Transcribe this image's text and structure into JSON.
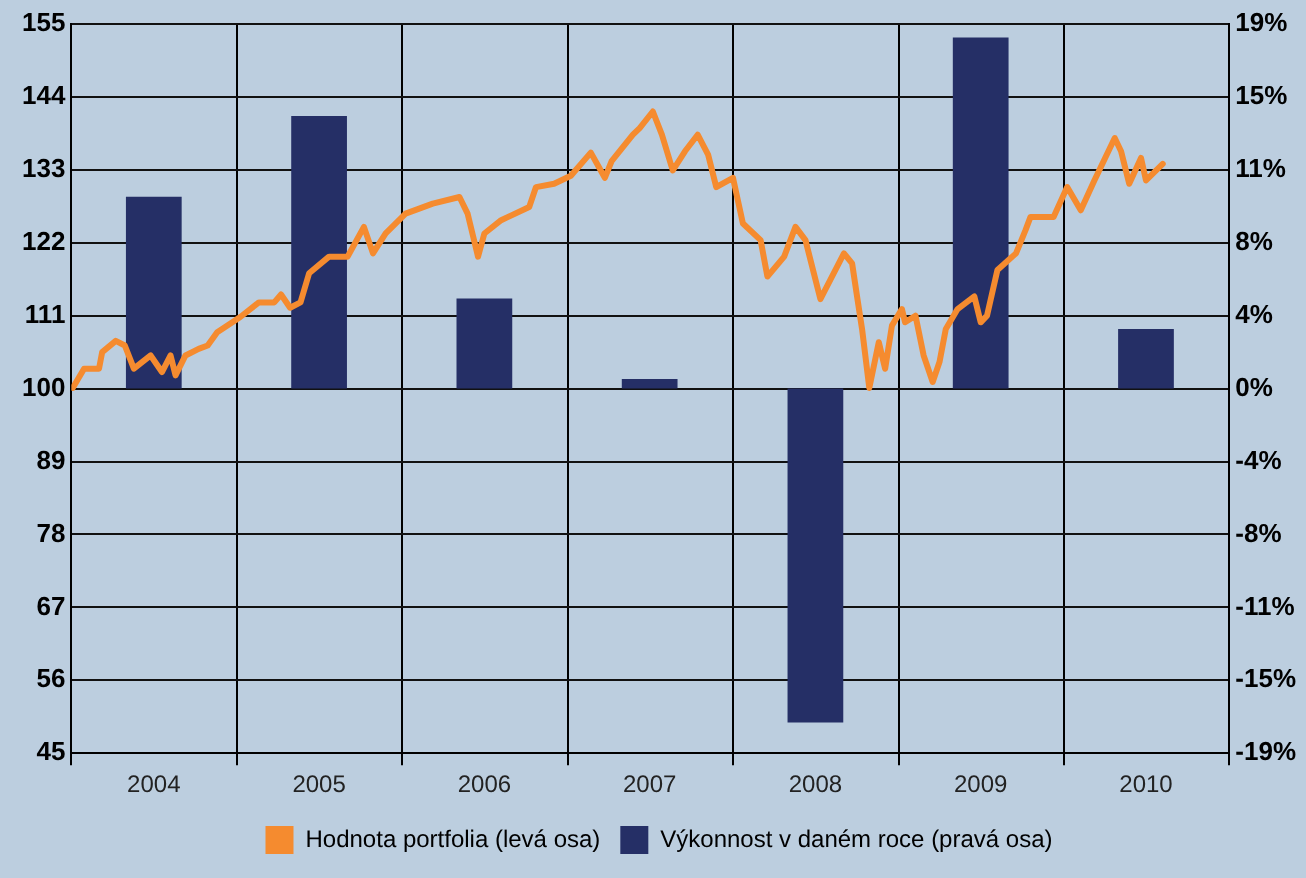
{
  "chart_data": {
    "type": "bar",
    "xlim": [
      "2004-01-01",
      "2011-01-01"
    ],
    "xticks": [
      {
        "value": "2004-01-01",
        "label": null
      },
      {
        "value": "2004-07-01",
        "label": "2004"
      },
      {
        "value": "2005-01-01",
        "label": null
      },
      {
        "value": "2005-07-01",
        "label": "2005"
      },
      {
        "value": "2006-01-01",
        "label": null
      },
      {
        "value": "2006-07-01",
        "label": "2006"
      },
      {
        "value": "2007-01-01",
        "label": null
      },
      {
        "value": "2007-07-01",
        "label": "2007"
      },
      {
        "value": "2008-01-01",
        "label": null
      },
      {
        "value": "2008-07-01",
        "label": "2008"
      },
      {
        "value": "2009-01-01",
        "label": null
      },
      {
        "value": "2009-07-01",
        "label": "2009"
      },
      {
        "value": "2010-01-01",
        "label": null
      },
      {
        "value": "2010-07-01",
        "label": "2010"
      },
      {
        "value": "2011-01-01",
        "label": null
      }
    ],
    "ylim": [
      45,
      155
    ],
    "yticks": [
      45,
      56,
      67,
      78,
      89,
      100,
      111,
      122,
      133,
      144,
      155
    ],
    "y2lim": [
      -19,
      19
    ],
    "y2ticks": [
      {
        "value": -19,
        "label": "-19%"
      },
      {
        "value": -15.2,
        "label": "-15%"
      },
      {
        "value": -11.4,
        "label": "-11%"
      },
      {
        "value": -7.6,
        "label": "-8%"
      },
      {
        "value": -3.8,
        "label": "-4%"
      },
      {
        "value": 0,
        "label": "0%"
      },
      {
        "value": 3.8,
        "label": "4%"
      },
      {
        "value": 7.6,
        "label": "8%"
      },
      {
        "value": 11.4,
        "label": "11%"
      },
      {
        "value": 15.2,
        "label": "15%"
      },
      {
        "value": 19,
        "label": "19%"
      }
    ],
    "series": [
      {
        "name": "Hodnota portfolia (levá osa)",
        "type": "line",
        "color": "#f58b2f",
        "x": [
          "2004-01-04",
          "2004-01-29",
          "2004-03-02",
          "2004-03-09",
          "2004-04-08",
          "2004-04-28",
          "2004-05-18",
          "2004-06-24",
          "2004-07-19",
          "2004-08-07",
          "2004-08-18",
          "2004-09-09",
          "2004-10-08",
          "2004-10-28",
          "2004-11-18",
          "2005-01-08",
          "2005-02-18",
          "2005-03-24",
          "2005-04-08",
          "2005-04-28",
          "2005-05-21",
          "2005-06-09",
          "2005-07-23",
          "2005-09-02",
          "2005-10-08",
          "2005-10-28",
          "2005-11-25",
          "2006-01-08",
          "2006-03-09",
          "2006-05-07",
          "2006-05-25",
          "2006-06-17",
          "2006-07-01",
          "2006-08-07",
          "2006-10-08",
          "2006-10-23",
          "2006-12-02",
          "2007-01-08",
          "2007-02-21",
          "2007-03-24",
          "2007-04-08",
          "2007-05-25",
          "2007-06-09",
          "2007-07-08",
          "2007-07-28",
          "2007-08-21",
          "2007-09-17",
          "2007-10-15",
          "2007-11-07",
          "2007-11-25",
          "2008-01-01",
          "2008-01-23",
          "2008-03-02",
          "2008-03-17",
          "2008-04-23",
          "2008-05-18",
          "2008-06-09",
          "2008-07-12",
          "2008-09-02",
          "2008-09-20",
          "2008-10-01",
          "2008-10-12",
          "2008-10-28",
          "2008-11-18",
          "2008-12-02",
          "2008-12-17",
          "2009-01-08",
          "2009-01-15",
          "2009-02-07",
          "2009-02-25",
          "2009-03-17",
          "2009-04-01",
          "2009-04-15",
          "2009-05-11",
          "2009-06-17",
          "2009-07-01",
          "2009-07-15",
          "2009-08-07",
          "2009-09-17",
          "2009-10-08",
          "2009-10-19",
          "2009-12-09",
          "2010-01-08",
          "2010-02-07",
          "2010-03-09",
          "2010-04-23",
          "2010-05-07",
          "2010-05-25",
          "2010-06-20",
          "2010-07-01",
          "2010-08-07"
        ],
        "values": [
          100.1,
          103.0,
          103.0,
          105.5,
          107.2,
          106.5,
          103.0,
          105.0,
          102.5,
          105.0,
          102.0,
          105.0,
          106.0,
          106.5,
          108.5,
          110.8,
          113.0,
          113.0,
          114.2,
          112.2,
          113.0,
          117.4,
          119.9,
          119.9,
          124.4,
          120.4,
          123.4,
          126.4,
          127.9,
          128.9,
          126.4,
          119.9,
          123.4,
          125.4,
          127.4,
          130.4,
          130.9,
          132.1,
          135.6,
          131.8,
          134.3,
          138.3,
          139.3,
          141.8,
          138.3,
          132.9,
          135.8,
          138.3,
          135.3,
          130.4,
          131.8,
          124.9,
          122.4,
          116.9,
          119.9,
          124.4,
          122.4,
          113.5,
          120.4,
          118.9,
          113.9,
          109.0,
          100.1,
          107.0,
          103.0,
          109.5,
          112.0,
          110.0,
          111.0,
          105.0,
          101.0,
          104.0,
          109.0,
          112.0,
          113.9,
          110.0,
          111.0,
          117.9,
          120.4,
          123.9,
          125.9,
          125.9,
          130.4,
          126.9,
          131.4,
          137.8,
          135.8,
          130.9,
          134.8,
          131.4,
          133.9
        ]
      },
      {
        "name": "Výkonnost v daném roce (pravá osa)",
        "axis": "y2",
        "color": "#252f66",
        "x": [
          "2004-07-01",
          "2005-07-01",
          "2006-07-01",
          "2007-07-01",
          "2008-07-01",
          "2009-07-01",
          "2010-07-01"
        ],
        "values": [
          10.0,
          14.2,
          4.7,
          0.5,
          -17.4,
          18.3,
          3.1
        ]
      }
    ],
    "grid": true,
    "legend": "bottom",
    "marker": "none",
    "line_style": "solid"
  }
}
